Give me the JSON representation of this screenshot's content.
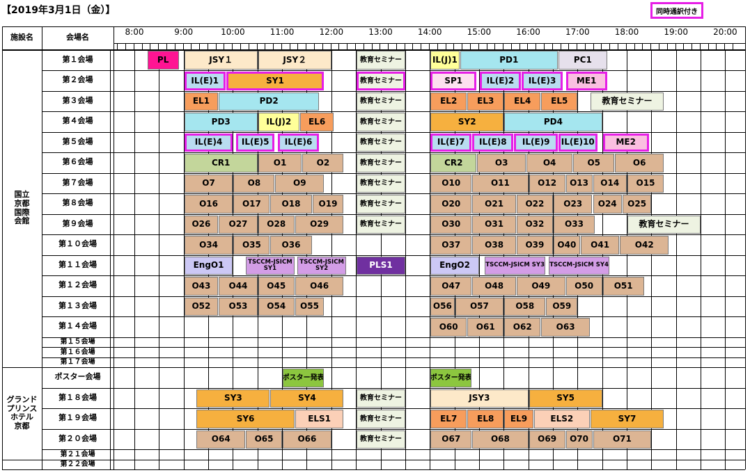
{
  "title": "【2019年3月1日（金）】",
  "legend": {
    "label": "同時通訳付き",
    "color": "#e61ee6"
  },
  "header": {
    "facility": "施設名",
    "room": "会場名"
  },
  "hours": [
    "8:00",
    "9:00",
    "10:00",
    "11:00",
    "12:00",
    "13:00",
    "14:00",
    "15:00",
    "16:00",
    "17:00",
    "18:00",
    "19:00",
    "20:00"
  ],
  "timeline": {
    "start_hour": 8,
    "end_hour": 20
  },
  "facilities": [
    {
      "name": "国立\n京都\n国際\n会館",
      "from": 0,
      "to": 16
    },
    {
      "name": "グランド\nプリンス\nホテル\n京都",
      "from": 17,
      "to": 21
    }
  ],
  "colors": {
    "pl": "#ff1493",
    "jsy": "#fde9c9",
    "edu": "#eef3e2",
    "ilj": "#ffff99",
    "pd": "#a5e6ef",
    "pc": "#e6e0ec",
    "ile": "#b9dcf0",
    "sy": "#f6b03f",
    "sp": "#fde0ef",
    "me": "#fabfe0",
    "el": "#f79d5c",
    "oral": "#dcb594",
    "cr": "#c3d69b",
    "eng": "#ccc8f5",
    "tsc": "#d39de6",
    "pls": "#7030a0",
    "poster": "#8cc63f",
    "els": "#fbd0b7"
  },
  "rooms": [
    {
      "name": "第１会場",
      "blocks": [
        {
          "label": "PL",
          "s": 8.25,
          "e": 8.9,
          "c": "pl"
        },
        {
          "label": "JSY１",
          "s": 9.0,
          "e": 10.5,
          "c": "jsy"
        },
        {
          "label": "JSY２",
          "s": 10.5,
          "e": 12.0,
          "c": "jsy"
        },
        {
          "label": "教育セミナー",
          "s": 12.5,
          "e": 13.5,
          "c": "edu",
          "size": "sm"
        },
        {
          "label": "IL(J)1",
          "s": 14.0,
          "e": 14.6,
          "c": "ilj"
        },
        {
          "label": "PD1",
          "s": 14.6,
          "e": 16.6,
          "c": "pd"
        },
        {
          "label": "PC1",
          "s": 16.6,
          "e": 17.6,
          "c": "pc"
        }
      ]
    },
    {
      "name": "第２会場",
      "blocks": [
        {
          "label": "IL(E)1",
          "s": 9.0,
          "e": 9.85,
          "c": "ile",
          "hl": true
        },
        {
          "label": "SY1",
          "s": 9.85,
          "e": 11.85,
          "c": "sy",
          "hl": true
        },
        {
          "label": "教育セミナー",
          "s": 12.5,
          "e": 13.5,
          "c": "edu",
          "size": "sm",
          "hl": true
        },
        {
          "label": "SP1",
          "s": 14.0,
          "e": 14.95,
          "c": "sp",
          "hl": true
        },
        {
          "label": "IL(E)2",
          "s": 15.0,
          "e": 15.85,
          "c": "ile",
          "hl": true
        },
        {
          "label": "IL(E)3",
          "s": 15.85,
          "e": 16.7,
          "c": "ile",
          "hl": true
        },
        {
          "label": "ME1",
          "s": 16.75,
          "e": 17.6,
          "c": "me",
          "hl": true
        }
      ]
    },
    {
      "name": "第３会場",
      "blocks": [
        {
          "label": "EL1",
          "s": 9.0,
          "e": 9.7,
          "c": "el"
        },
        {
          "label": "PD2",
          "s": 9.7,
          "e": 11.75,
          "c": "pd"
        },
        {
          "label": "教育セミナー",
          "s": 12.5,
          "e": 13.5,
          "c": "edu",
          "size": "sm"
        },
        {
          "label": "EL2",
          "s": 14.0,
          "e": 14.75,
          "c": "el"
        },
        {
          "label": "EL3",
          "s": 14.75,
          "e": 15.5,
          "c": "el"
        },
        {
          "label": "EL4",
          "s": 15.5,
          "e": 16.25,
          "c": "el"
        },
        {
          "label": "EL5",
          "s": 16.25,
          "e": 17.0,
          "c": "el"
        },
        {
          "label": "教育セミナー",
          "s": 17.25,
          "e": 18.75,
          "c": "edu"
        }
      ]
    },
    {
      "name": "第４会場",
      "blocks": [
        {
          "label": "PD3",
          "s": 9.0,
          "e": 10.5,
          "c": "pd"
        },
        {
          "label": "IL(J)2",
          "s": 10.5,
          "e": 11.35,
          "c": "ilj"
        },
        {
          "label": "EL6",
          "s": 11.35,
          "e": 12.05,
          "c": "el"
        },
        {
          "label": "教育セミナー",
          "s": 12.5,
          "e": 13.5,
          "c": "edu",
          "size": "sm"
        },
        {
          "label": "SY2",
          "s": 14.0,
          "e": 15.5,
          "c": "sy"
        },
        {
          "label": "PD4",
          "s": 15.5,
          "e": 17.5,
          "c": "pd"
        }
      ]
    },
    {
      "name": "第５会場",
      "blocks": [
        {
          "label": "IL(E)4",
          "s": 9.0,
          "e": 10.0,
          "c": "ile",
          "hl": true
        },
        {
          "label": "IL(E)5",
          "s": 10.05,
          "e": 10.85,
          "c": "ile",
          "hl": true
        },
        {
          "label": "IL(E)6",
          "s": 10.9,
          "e": 11.75,
          "c": "ile",
          "hl": true
        },
        {
          "label": "教育セミナー",
          "s": 12.5,
          "e": 13.5,
          "c": "edu",
          "size": "sm"
        },
        {
          "label": "IL(E)7",
          "s": 14.0,
          "e": 14.85,
          "c": "ile",
          "hl": true
        },
        {
          "label": "IL(E)8",
          "s": 14.85,
          "e": 15.7,
          "c": "ile",
          "hl": true
        },
        {
          "label": "IL(E)9",
          "s": 15.7,
          "e": 16.6,
          "c": "ile",
          "hl": true
        },
        {
          "label": "IL(E)10",
          "s": 16.6,
          "e": 17.4,
          "c": "ile",
          "hl": true
        },
        {
          "label": "ME2",
          "s": 17.5,
          "e": 18.45,
          "c": "me",
          "hl": true
        }
      ]
    },
    {
      "name": "第６会場",
      "blocks": [
        {
          "label": "CR1",
          "s": 9.0,
          "e": 10.5,
          "c": "cr"
        },
        {
          "label": "O1",
          "s": 10.5,
          "e": 11.4,
          "c": "oral"
        },
        {
          "label": "O2",
          "s": 11.4,
          "e": 12.25,
          "c": "oral"
        },
        {
          "label": "教育セミナー",
          "s": 12.5,
          "e": 13.5,
          "c": "edu",
          "size": "sm"
        },
        {
          "label": "CR2",
          "s": 14.0,
          "e": 14.95,
          "c": "cr"
        },
        {
          "label": "O3",
          "s": 14.95,
          "e": 15.95,
          "c": "oral"
        },
        {
          "label": "O4",
          "s": 15.95,
          "e": 16.9,
          "c": "oral"
        },
        {
          "label": "O5",
          "s": 16.9,
          "e": 17.75,
          "c": "oral"
        },
        {
          "label": "O6",
          "s": 17.75,
          "e": 18.75,
          "c": "oral"
        }
      ]
    },
    {
      "name": "第７会場",
      "blocks": [
        {
          "label": "O7",
          "s": 9.0,
          "e": 10.0,
          "c": "oral"
        },
        {
          "label": "O8",
          "s": 10.0,
          "e": 10.85,
          "c": "oral"
        },
        {
          "label": "O9",
          "s": 10.85,
          "e": 11.85,
          "c": "oral"
        },
        {
          "label": "教育セミナー",
          "s": 12.5,
          "e": 13.5,
          "c": "edu",
          "size": "sm"
        },
        {
          "label": "O10",
          "s": 14.0,
          "e": 14.85,
          "c": "oral"
        },
        {
          "label": "O11",
          "s": 14.85,
          "e": 16.0,
          "c": "oral"
        },
        {
          "label": "O12",
          "s": 16.0,
          "e": 16.75,
          "c": "oral"
        },
        {
          "label": "O13",
          "s": 16.75,
          "e": 17.3,
          "c": "oral"
        },
        {
          "label": "O14",
          "s": 17.3,
          "e": 18.0,
          "c": "oral"
        },
        {
          "label": "O15",
          "s": 18.0,
          "e": 18.75,
          "c": "oral"
        }
      ]
    },
    {
      "name": "第８会場",
      "blocks": [
        {
          "label": "O16",
          "s": 9.0,
          "e": 10.0,
          "c": "oral"
        },
        {
          "label": "O17",
          "s": 10.0,
          "e": 10.75,
          "c": "oral"
        },
        {
          "label": "O18",
          "s": 10.75,
          "e": 11.6,
          "c": "oral"
        },
        {
          "label": "O19",
          "s": 11.6,
          "e": 12.25,
          "c": "oral"
        },
        {
          "label": "教育セミナー",
          "s": 12.5,
          "e": 13.5,
          "c": "edu",
          "size": "sm"
        },
        {
          "label": "O20",
          "s": 14.0,
          "e": 14.85,
          "c": "oral"
        },
        {
          "label": "O21",
          "s": 14.85,
          "e": 15.75,
          "c": "oral"
        },
        {
          "label": "O22",
          "s": 15.75,
          "e": 16.5,
          "c": "oral"
        },
        {
          "label": "O23",
          "s": 16.5,
          "e": 17.3,
          "c": "oral"
        },
        {
          "label": "O24",
          "s": 17.3,
          "e": 17.9,
          "c": "oral"
        },
        {
          "label": "O25",
          "s": 17.9,
          "e": 18.5,
          "c": "oral"
        }
      ]
    },
    {
      "name": "第９会場",
      "blocks": [
        {
          "label": "O26",
          "s": 9.0,
          "e": 9.7,
          "c": "oral"
        },
        {
          "label": "O27",
          "s": 9.7,
          "e": 10.5,
          "c": "oral"
        },
        {
          "label": "O28",
          "s": 10.5,
          "e": 11.25,
          "c": "oral"
        },
        {
          "label": "O29",
          "s": 11.25,
          "e": 12.25,
          "c": "oral"
        },
        {
          "label": "教育セミナー",
          "s": 12.5,
          "e": 13.5,
          "c": "edu",
          "size": "sm"
        },
        {
          "label": "O30",
          "s": 14.0,
          "e": 14.85,
          "c": "oral"
        },
        {
          "label": "O31",
          "s": 14.85,
          "e": 15.75,
          "c": "oral"
        },
        {
          "label": "O32",
          "s": 15.75,
          "e": 16.5,
          "c": "oral"
        },
        {
          "label": "O33",
          "s": 16.5,
          "e": 17.35,
          "c": "oral"
        },
        {
          "label": "教育セミナー",
          "s": 18.0,
          "e": 19.5,
          "c": "edu"
        }
      ]
    },
    {
      "name": "第１０会場",
      "blocks": [
        {
          "label": "O34",
          "s": 9.0,
          "e": 10.0,
          "c": "oral"
        },
        {
          "label": "O35",
          "s": 10.0,
          "e": 10.75,
          "c": "oral"
        },
        {
          "label": "O36",
          "s": 10.75,
          "e": 11.6,
          "c": "oral"
        },
        {
          "label": "O37",
          "s": 14.0,
          "e": 14.85,
          "c": "oral"
        },
        {
          "label": "O38",
          "s": 14.85,
          "e": 15.75,
          "c": "oral"
        },
        {
          "label": "O39",
          "s": 15.75,
          "e": 16.5,
          "c": "oral"
        },
        {
          "label": "O40",
          "s": 16.5,
          "e": 17.05,
          "c": "oral"
        },
        {
          "label": "O41",
          "s": 17.05,
          "e": 17.85,
          "c": "oral"
        },
        {
          "label": "O42",
          "s": 17.85,
          "e": 18.85,
          "c": "oral"
        }
      ]
    },
    {
      "name": "第１１会場",
      "blocks": [
        {
          "label": "EngO1",
          "s": 9.0,
          "e": 10.0,
          "c": "eng"
        },
        {
          "label": "TSCCM-JSICM SY1",
          "s": 10.25,
          "e": 11.25,
          "c": "tsc",
          "size": "xs"
        },
        {
          "label": "TSCCM-JSICM SY2",
          "s": 11.3,
          "e": 12.3,
          "c": "tsc",
          "size": "xs"
        },
        {
          "label": "PLS1",
          "s": 12.5,
          "e": 13.5,
          "c": "pls",
          "dark": true
        },
        {
          "label": "EngO2",
          "s": 14.0,
          "e": 15.0,
          "c": "eng"
        },
        {
          "label": "TSCCM-JSICM SY3",
          "s": 15.1,
          "e": 16.35,
          "c": "tsc",
          "size": "xs"
        },
        {
          "label": "TSCCM-JSICM SY4",
          "s": 16.4,
          "e": 17.65,
          "c": "tsc",
          "size": "xs"
        }
      ]
    },
    {
      "name": "第１２会場",
      "blocks": [
        {
          "label": "O43",
          "s": 9.0,
          "e": 9.7,
          "c": "oral"
        },
        {
          "label": "O44",
          "s": 9.7,
          "e": 10.5,
          "c": "oral"
        },
        {
          "label": "O45",
          "s": 10.5,
          "e": 11.25,
          "c": "oral"
        },
        {
          "label": "O46",
          "s": 11.25,
          "e": 12.25,
          "c": "oral"
        },
        {
          "label": "O47",
          "s": 14.0,
          "e": 14.85,
          "c": "oral"
        },
        {
          "label": "O48",
          "s": 14.85,
          "e": 15.75,
          "c": "oral"
        },
        {
          "label": "O49",
          "s": 15.75,
          "e": 16.75,
          "c": "oral"
        },
        {
          "label": "O50",
          "s": 16.75,
          "e": 17.5,
          "c": "oral"
        },
        {
          "label": "O51",
          "s": 17.5,
          "e": 18.35,
          "c": "oral"
        }
      ]
    },
    {
      "name": "第１３会場",
      "blocks": [
        {
          "label": "O52",
          "s": 9.0,
          "e": 9.7,
          "c": "oral"
        },
        {
          "label": "O53",
          "s": 9.7,
          "e": 10.5,
          "c": "oral"
        },
        {
          "label": "O54",
          "s": 10.5,
          "e": 11.25,
          "c": "oral"
        },
        {
          "label": "O55",
          "s": 11.25,
          "e": 11.85,
          "c": "oral"
        },
        {
          "label": "O56",
          "s": 14.0,
          "e": 14.5,
          "c": "oral"
        },
        {
          "label": "O57",
          "s": 14.5,
          "e": 15.5,
          "c": "oral"
        },
        {
          "label": "O58",
          "s": 15.5,
          "e": 16.35,
          "c": "oral"
        },
        {
          "label": "O59",
          "s": 16.35,
          "e": 17.0,
          "c": "oral"
        }
      ]
    },
    {
      "name": "第１４会場",
      "blocks": [
        {
          "label": "O60",
          "s": 14.0,
          "e": 14.75,
          "c": "oral"
        },
        {
          "label": "O61",
          "s": 14.75,
          "e": 15.5,
          "c": "oral"
        },
        {
          "label": "O62",
          "s": 15.5,
          "e": 16.25,
          "c": "oral"
        },
        {
          "label": "O63",
          "s": 16.25,
          "e": 17.25,
          "c": "oral"
        }
      ]
    },
    {
      "name": "第１５会場",
      "blocks": []
    },
    {
      "name": "第１６会場",
      "blocks": []
    },
    {
      "name": "第１７会場",
      "blocks": []
    },
    {
      "name": "ポスター会場",
      "blocks": [
        {
          "label": "ポスター発表",
          "s": 11.0,
          "e": 11.85,
          "c": "poster",
          "size": "sm"
        },
        {
          "label": "ポスター発表",
          "s": 14.0,
          "e": 14.85,
          "c": "poster",
          "size": "sm"
        }
      ]
    },
    {
      "name": "第１８会場",
      "blocks": [
        {
          "label": "SY3",
          "s": 9.25,
          "e": 10.75,
          "c": "sy"
        },
        {
          "label": "SY4",
          "s": 10.75,
          "e": 12.25,
          "c": "sy"
        },
        {
          "label": "教育セミナー",
          "s": 12.5,
          "e": 13.5,
          "c": "edu",
          "size": "sm"
        },
        {
          "label": "JSY3",
          "s": 14.0,
          "e": 16.0,
          "c": "jsy"
        },
        {
          "label": "SY5",
          "s": 16.0,
          "e": 17.5,
          "c": "sy"
        }
      ]
    },
    {
      "name": "第１９会場",
      "blocks": [
        {
          "label": "SY6",
          "s": 9.25,
          "e": 11.25,
          "c": "sy"
        },
        {
          "label": "ELS1",
          "s": 11.25,
          "e": 12.25,
          "c": "els"
        },
        {
          "label": "教育セミナー",
          "s": 12.5,
          "e": 13.5,
          "c": "edu",
          "size": "sm"
        },
        {
          "label": "EL7",
          "s": 14.0,
          "e": 14.75,
          "c": "el"
        },
        {
          "label": "EL8",
          "s": 14.75,
          "e": 15.5,
          "c": "el"
        },
        {
          "label": "EL9",
          "s": 15.5,
          "e": 16.1,
          "c": "el"
        },
        {
          "label": "ELS2",
          "s": 16.1,
          "e": 17.25,
          "c": "els"
        },
        {
          "label": "SY7",
          "s": 17.25,
          "e": 18.75,
          "c": "sy"
        }
      ]
    },
    {
      "name": "第２０会場",
      "blocks": [
        {
          "label": "O64",
          "s": 9.25,
          "e": 10.25,
          "c": "oral"
        },
        {
          "label": "O65",
          "s": 10.25,
          "e": 11.0,
          "c": "oral"
        },
        {
          "label": "O66",
          "s": 11.0,
          "e": 12.0,
          "c": "oral"
        },
        {
          "label": "教育セミナー",
          "s": 12.5,
          "e": 13.5,
          "c": "edu",
          "size": "sm"
        },
        {
          "label": "O67",
          "s": 14.0,
          "e": 14.85,
          "c": "oral"
        },
        {
          "label": "O68",
          "s": 14.85,
          "e": 16.0,
          "c": "oral"
        },
        {
          "label": "O69",
          "s": 16.0,
          "e": 16.75,
          "c": "oral"
        },
        {
          "label": "O70",
          "s": 16.75,
          "e": 17.3,
          "c": "oral"
        },
        {
          "label": "O71",
          "s": 17.3,
          "e": 18.5,
          "c": "oral"
        }
      ]
    },
    {
      "name": "第２１会場",
      "blocks": []
    },
    {
      "name": "第２２会場",
      "blocks": []
    }
  ]
}
